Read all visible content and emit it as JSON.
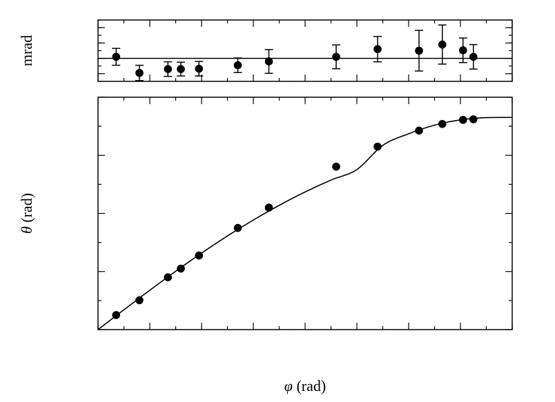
{
  "chart_data": [
    {
      "type": "scatter",
      "title": "",
      "ylabel": "mrad",
      "xlim": [
        0.0,
        1.6
      ],
      "ylim": [
        -6,
        10
      ],
      "yticks": [
        "-4",
        "0",
        "4",
        "8"
      ],
      "reference_line_y": 0,
      "series": [
        {
          "x": [
            0.07,
            0.16,
            0.27,
            0.32,
            0.39,
            0.54,
            0.66,
            0.92,
            1.08,
            1.24,
            1.33,
            1.41,
            1.45
          ],
          "y": [
            0.4,
            -3.8,
            -2.8,
            -2.8,
            -2.7,
            -1.8,
            -0.8,
            0.4,
            2.4,
            2.0,
            3.6,
            2.1,
            0.4
          ],
          "yerr": [
            2.2,
            2.0,
            1.9,
            1.8,
            1.9,
            1.9,
            3.1,
            3.1,
            3.3,
            5.3,
            5.1,
            3.2,
            3.2
          ]
        }
      ]
    },
    {
      "type": "scatter",
      "title": "",
      "xlabel_symbol": "φ",
      "xlabel_unit": " (rad)",
      "ylabel_symbol": "θ",
      "ylabel_unit": " (rad)",
      "xlim": [
        0.0,
        1.6
      ],
      "ylim": [
        0.0,
        0.8
      ],
      "xticks": [
        "0.0",
        "0.2",
        "0.4",
        "0.6",
        "0.8",
        "1.0",
        "1.2",
        "1.4",
        "1.6"
      ],
      "yticks": [
        "0.0",
        "0.2",
        "0.4",
        "0.6",
        "0.8"
      ],
      "series": [
        {
          "x": [
            0.07,
            0.16,
            0.27,
            0.32,
            0.39,
            0.54,
            0.66,
            0.92,
            1.08,
            1.24,
            1.33,
            1.41,
            1.45
          ],
          "y": [
            0.05,
            0.101,
            0.18,
            0.21,
            0.255,
            0.35,
            0.42,
            0.561,
            0.63,
            0.685,
            0.708,
            0.722,
            0.724
          ]
        }
      ],
      "fit_curve": {
        "x": [
          0.0,
          0.1,
          0.2,
          0.3,
          0.4,
          0.5,
          0.6,
          0.7,
          0.8,
          0.9,
          1.0,
          1.1,
          1.2,
          1.3,
          1.4,
          1.5,
          1.6
        ],
        "y": [
          0.0,
          0.0683,
          0.1355,
          0.2009,
          0.2633,
          0.3223,
          0.3772,
          0.4279,
          0.4739,
          0.5149,
          0.5509,
          0.6342,
          0.6743,
          0.7038,
          0.7221,
          0.7297,
          0.7303
        ]
      }
    }
  ]
}
